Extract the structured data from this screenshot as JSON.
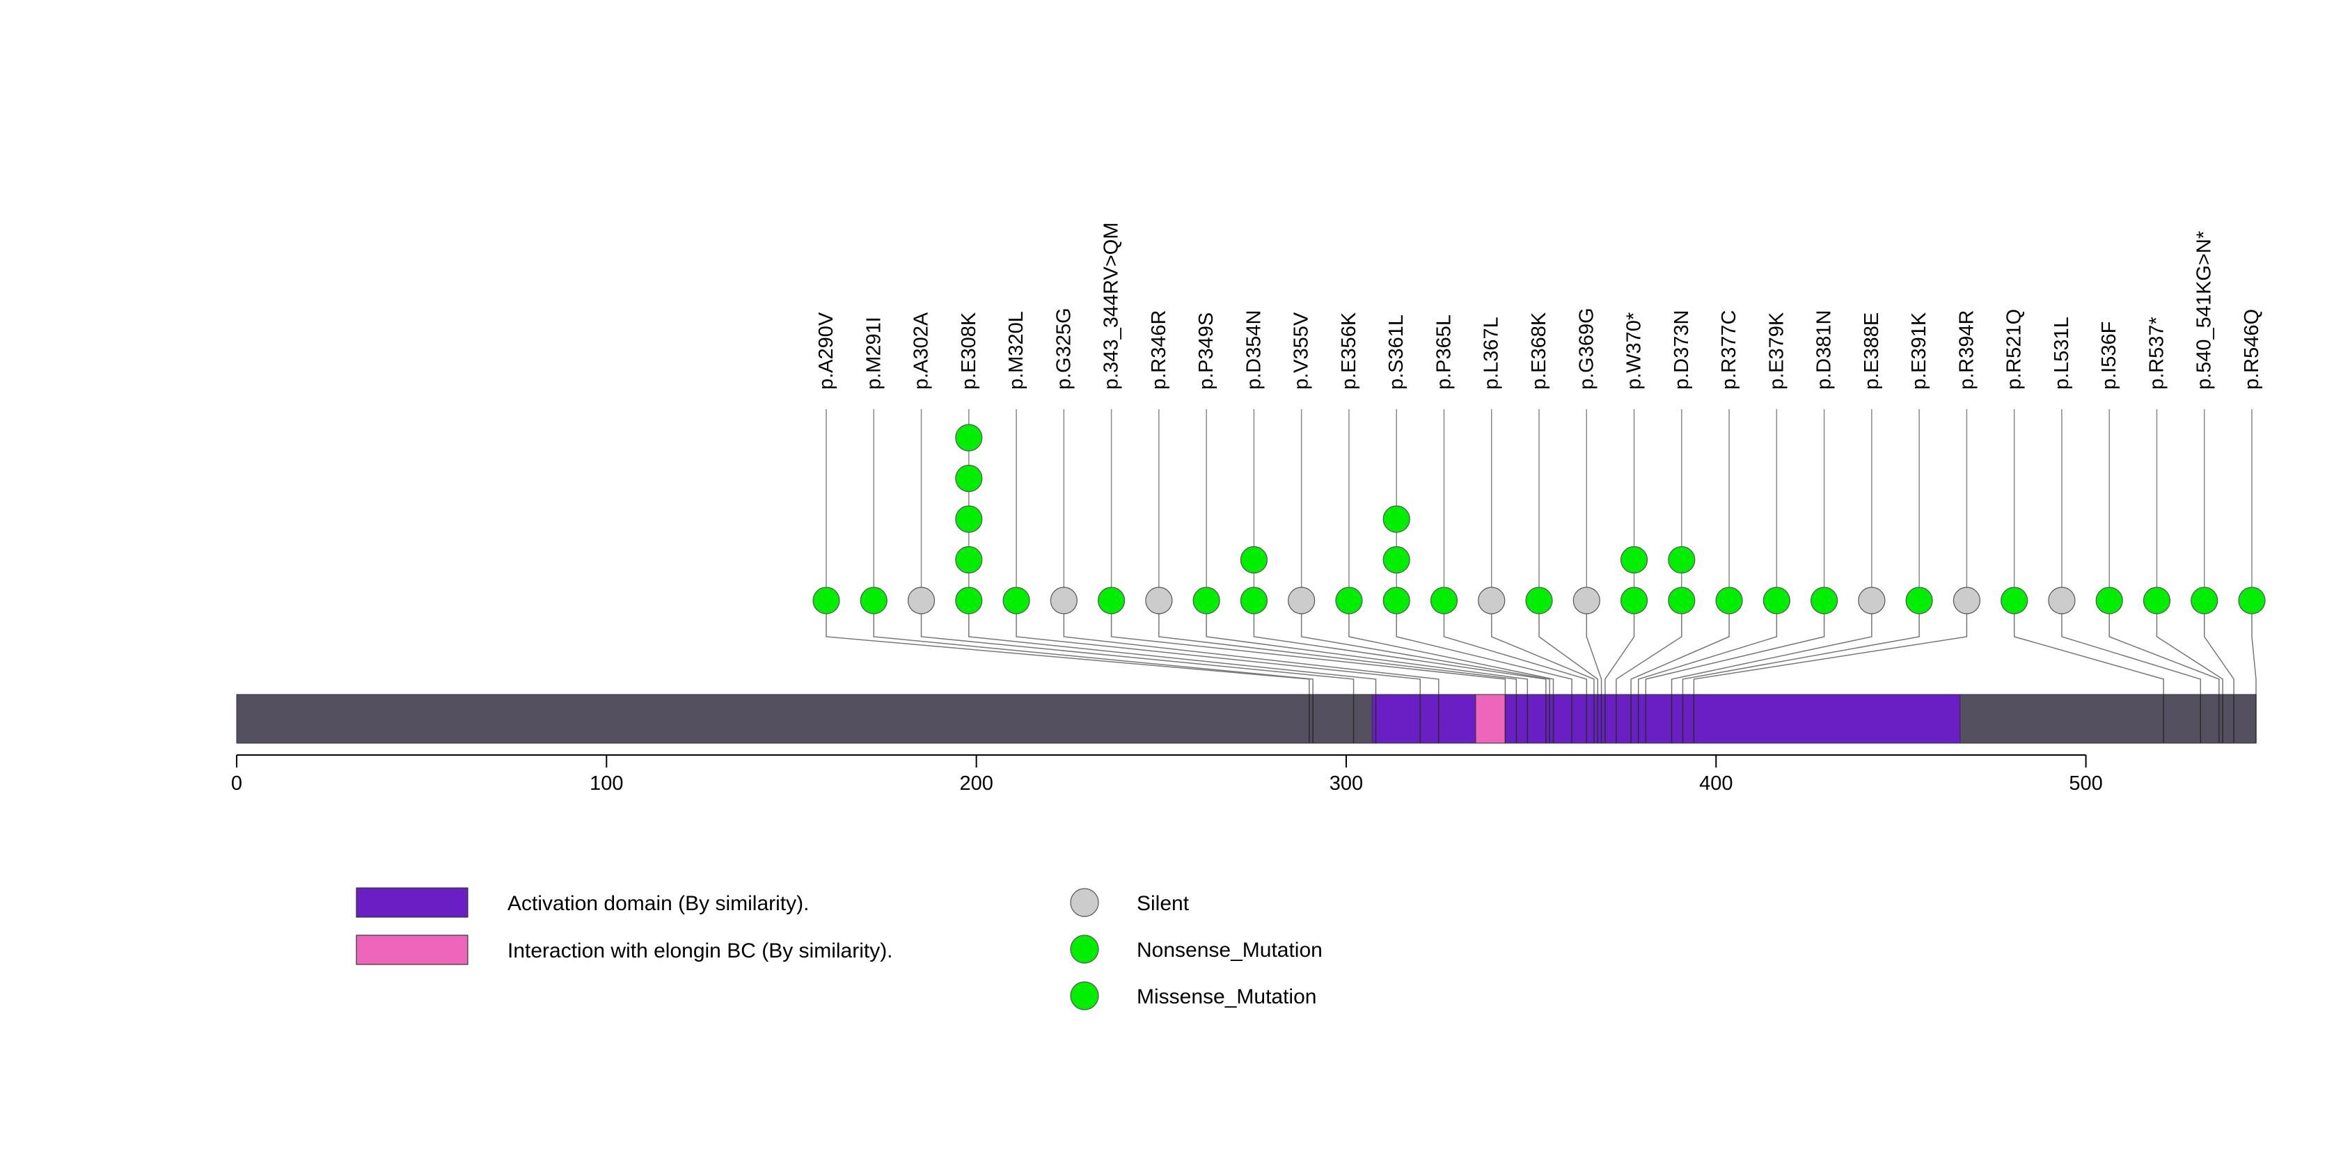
{
  "chart_data": {
    "type": "lollipop",
    "protein_length": 546,
    "axis": {
      "ticks": [
        0,
        100,
        200,
        300,
        400,
        500
      ]
    },
    "domains": [
      {
        "label": "Activation domain (By similarity).",
        "start": 307,
        "end": 466,
        "color": "#6a1fc4"
      },
      {
        "label": "Interaction with elongin BC (By similarity).",
        "start": 335,
        "end": 343,
        "color": "#ee66bb"
      }
    ],
    "legend_domains": [
      {
        "label": "Activation domain (By similarity).",
        "color": "#6a1fc4"
      },
      {
        "label": "Interaction with elongin BC (By similarity).",
        "color": "#ee66bb"
      }
    ],
    "legend_mutations": [
      {
        "label": "Silent",
        "color": "#cccccc"
      },
      {
        "label": "Nonsense_Mutation",
        "color": "#00ee00"
      },
      {
        "label": "Missense_Mutation",
        "color": "#00ee00"
      }
    ],
    "mutations": [
      {
        "label": "p.A290V",
        "position": 290,
        "count": 1,
        "type": "Missense_Mutation",
        "color": "#00ee00"
      },
      {
        "label": "p.M291I",
        "position": 291,
        "count": 1,
        "type": "Missense_Mutation",
        "color": "#00ee00"
      },
      {
        "label": "p.A302A",
        "position": 302,
        "count": 1,
        "type": "Silent",
        "color": "#cccccc"
      },
      {
        "label": "p.E308K",
        "position": 308,
        "count": 5,
        "type": "Missense_Mutation",
        "color": "#00ee00"
      },
      {
        "label": "p.M320L",
        "position": 320,
        "count": 1,
        "type": "Missense_Mutation",
        "color": "#00ee00"
      },
      {
        "label": "p.G325G",
        "position": 325,
        "count": 1,
        "type": "Silent",
        "color": "#cccccc"
      },
      {
        "label": "p.343_344RV>QM",
        "position": 343,
        "count": 1,
        "type": "Missense_Mutation",
        "color": "#00ee00"
      },
      {
        "label": "p.R346R",
        "position": 346,
        "count": 1,
        "type": "Silent",
        "color": "#cccccc"
      },
      {
        "label": "p.P349S",
        "position": 349,
        "count": 1,
        "type": "Missense_Mutation",
        "color": "#00ee00"
      },
      {
        "label": "p.D354N",
        "position": 354,
        "count": 2,
        "type": "Missense_Mutation",
        "color": "#00ee00"
      },
      {
        "label": "p.V355V",
        "position": 355,
        "count": 1,
        "type": "Silent",
        "color": "#cccccc"
      },
      {
        "label": "p.E356K",
        "position": 356,
        "count": 1,
        "type": "Missense_Mutation",
        "color": "#00ee00"
      },
      {
        "label": "p.S361L",
        "position": 361,
        "count": 3,
        "type": "Missense_Mutation",
        "color": "#00ee00"
      },
      {
        "label": "p.P365L",
        "position": 365,
        "count": 1,
        "type": "Missense_Mutation",
        "color": "#00ee00"
      },
      {
        "label": "p.L367L",
        "position": 367,
        "count": 1,
        "type": "Silent",
        "color": "#cccccc"
      },
      {
        "label": "p.E368K",
        "position": 368,
        "count": 1,
        "type": "Missense_Mutation",
        "color": "#00ee00"
      },
      {
        "label": "p.G369G",
        "position": 369,
        "count": 1,
        "type": "Silent",
        "color": "#cccccc"
      },
      {
        "label": "p.W370*",
        "position": 370,
        "count": 2,
        "type": "Nonsense_Mutation",
        "color": "#00ee00"
      },
      {
        "label": "p.D373N",
        "position": 373,
        "count": 2,
        "type": "Missense_Mutation",
        "color": "#00ee00"
      },
      {
        "label": "p.R377C",
        "position": 377,
        "count": 1,
        "type": "Missense_Mutation",
        "color": "#00ee00"
      },
      {
        "label": "p.E379K",
        "position": 379,
        "count": 1,
        "type": "Missense_Mutation",
        "color": "#00ee00"
      },
      {
        "label": "p.D381N",
        "position": 381,
        "count": 1,
        "type": "Missense_Mutation",
        "color": "#00ee00"
      },
      {
        "label": "p.E388E",
        "position": 388,
        "count": 1,
        "type": "Silent",
        "color": "#cccccc"
      },
      {
        "label": "p.E391K",
        "position": 391,
        "count": 1,
        "type": "Missense_Mutation",
        "color": "#00ee00"
      },
      {
        "label": "p.R394R",
        "position": 394,
        "count": 1,
        "type": "Silent",
        "color": "#cccccc"
      },
      {
        "label": "p.R521Q",
        "position": 521,
        "count": 1,
        "type": "Missense_Mutation",
        "color": "#00ee00"
      },
      {
        "label": "p.L531L",
        "position": 531,
        "count": 1,
        "type": "Silent",
        "color": "#cccccc"
      },
      {
        "label": "p.I536F",
        "position": 536,
        "count": 1,
        "type": "Missense_Mutation",
        "color": "#00ee00"
      },
      {
        "label": "p.R537*",
        "position": 537,
        "count": 1,
        "type": "Nonsense_Mutation",
        "color": "#00ee00"
      },
      {
        "label": "p.540_541KG>N*",
        "position": 540,
        "count": 1,
        "type": "Nonsense_Mutation",
        "color": "#00ee00"
      },
      {
        "label": "p.R546Q",
        "position": 546,
        "count": 1,
        "type": "Missense_Mutation",
        "color": "#00ee00"
      }
    ]
  }
}
